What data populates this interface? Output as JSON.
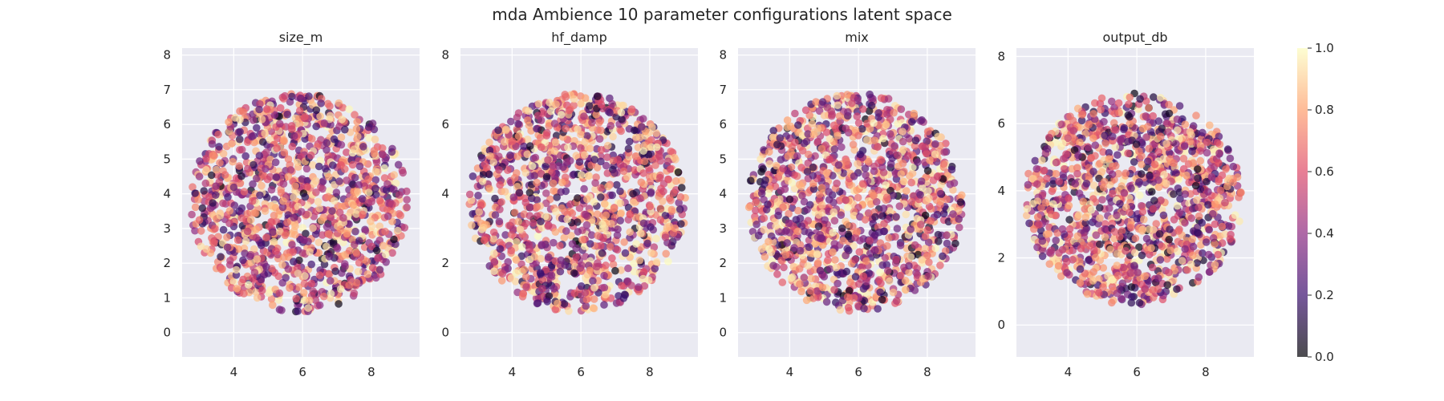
{
  "chart_data": {
    "type": "scatter",
    "title": "mda Ambience 10 parameter configurations latent space",
    "colormap": "magma",
    "colormap_stops": [
      "#000004",
      "#3b0f70",
      "#8c2981",
      "#de4968",
      "#fe9f6d",
      "#fcfdbf"
    ],
    "marker_alpha": 0.7,
    "style": {
      "axes_bg": "#eaeaf2",
      "grid_color": "#ffffff",
      "grid": true,
      "text_color": "#262626",
      "legend": "none"
    },
    "colorbar": {
      "range": [
        0.0,
        1.0
      ],
      "ticks": [
        0.0,
        0.2,
        0.4,
        0.6,
        0.8,
        1.0
      ],
      "tick_labels": [
        "0.0",
        "0.2",
        "0.4",
        "0.6",
        "0.8",
        "1.0"
      ]
    },
    "point_cloud": {
      "shape": "disk",
      "center": [
        5.9,
        3.75
      ],
      "radius": 3.15,
      "count": 1300,
      "color_value_range": [
        0.0,
        1.0
      ]
    },
    "panels": [
      {
        "title": "size_m",
        "xlim": [
          2.5,
          9.4
        ],
        "ylim": [
          -0.7,
          8.2
        ],
        "xticks": [
          4,
          6,
          8
        ],
        "xtick_labels": [
          "4",
          "6",
          "8"
        ],
        "yticks": [
          0,
          1,
          2,
          3,
          4,
          5,
          6,
          7,
          8
        ],
        "ytick_labels": [
          "0",
          "1",
          "2",
          "3",
          "4",
          "5",
          "6",
          "7",
          "8"
        ]
      },
      {
        "title": "hf_damp",
        "xlim": [
          2.5,
          9.4
        ],
        "ylim": [
          -0.7,
          8.2
        ],
        "xticks": [
          4,
          6,
          8
        ],
        "xtick_labels": [
          "4",
          "6",
          "8"
        ],
        "yticks": [
          0,
          2,
          4,
          6,
          8
        ],
        "ytick_labels": [
          "0",
          "2",
          "4",
          "6",
          "8"
        ]
      },
      {
        "title": "mix",
        "xlim": [
          2.5,
          9.4
        ],
        "ylim": [
          -0.7,
          8.2
        ],
        "xticks": [
          4,
          6,
          8
        ],
        "xtick_labels": [
          "4",
          "6",
          "8"
        ],
        "yticks": [
          0,
          1,
          2,
          3,
          4,
          5,
          6,
          7,
          8
        ],
        "ytick_labels": [
          "0",
          "1",
          "2",
          "3",
          "4",
          "5",
          "6",
          "7",
          "8"
        ]
      },
      {
        "title": "output_db",
        "xlim": [
          2.5,
          9.4
        ],
        "ylim": [
          -0.95,
          8.25
        ],
        "xticks": [
          4,
          6,
          8
        ],
        "xtick_labels": [
          "4",
          "6",
          "8"
        ],
        "yticks": [
          0,
          2,
          4,
          6,
          8
        ],
        "ytick_labels": [
          "0",
          "2",
          "4",
          "6",
          "8"
        ]
      }
    ]
  }
}
